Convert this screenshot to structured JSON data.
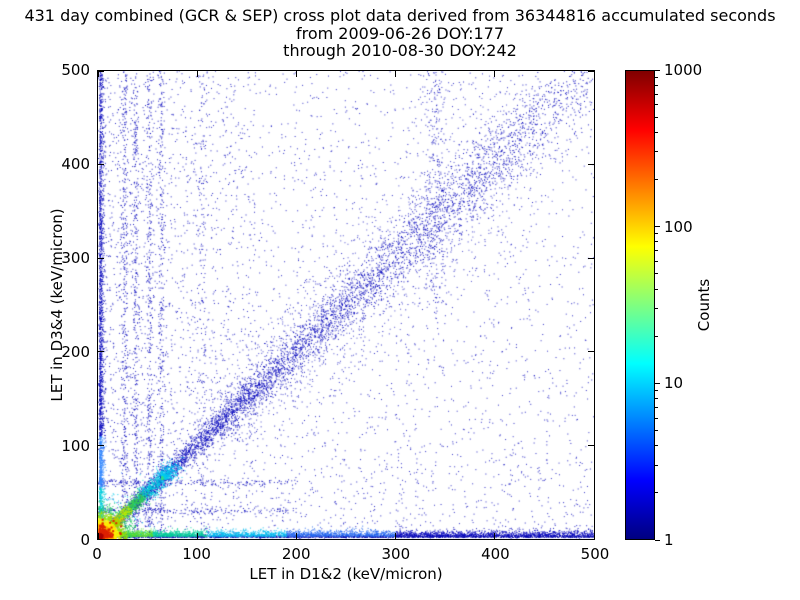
{
  "chart_data": {
    "type": "heatmap",
    "title": "431 day combined (GCR & SEP) cross plot data derived from 36344816 accumulated seconds",
    "subtitle_from": "from 2009-06-26 DOY:177",
    "subtitle_through": "through 2010-08-30 DOY:242",
    "xlabel": "LET in D1&2 (keV/micron)",
    "ylabel": "LET in D3&4 (keV/micron)",
    "xlim": [
      0,
      500
    ],
    "ylim": [
      0,
      500
    ],
    "xticks": [
      0,
      100,
      200,
      300,
      400,
      500
    ],
    "yticks": [
      0,
      100,
      200,
      300,
      400,
      500
    ],
    "grid": false,
    "point_color_low": "#0000bb",
    "colorbar": {
      "label": "Counts",
      "scale": "log",
      "ticks": [
        1,
        10,
        100,
        1000
      ],
      "tick_labels": [
        "1",
        "10",
        "100",
        "1000"
      ],
      "colormap": "jet",
      "gradient": [
        [
          0,
          "#000080"
        ],
        [
          0.125,
          "#0000ff"
        ],
        [
          0.375,
          "#00ffff"
        ],
        [
          0.625,
          "#ffff00"
        ],
        [
          0.875,
          "#ff0000"
        ],
        [
          1,
          "#800000"
        ]
      ]
    },
    "seed": 1337,
    "features": [
      {
        "id": "bg-sparse",
        "type": "uniform",
        "count": 2600,
        "x": [
          0,
          500
        ],
        "y": [
          0,
          500
        ],
        "xpow": 1.3,
        "ypow": 1.15,
        "color": "#0000bb",
        "size": 1,
        "alpha": 0.85
      },
      {
        "id": "bg-even",
        "type": "uniform",
        "count": 900,
        "x": [
          0,
          500
        ],
        "y": [
          0,
          500
        ],
        "xpow": 1.0,
        "ypow": 1.0,
        "color": "#0000bb",
        "size": 1,
        "alpha": 0.8
      },
      {
        "id": "upper-left-cloud",
        "type": "uniform",
        "count": 700,
        "x": [
          0,
          160
        ],
        "y": [
          80,
          500
        ],
        "xpow": 1.2,
        "ypow": 1.0,
        "color": "#0000bb",
        "size": 1,
        "alpha": 0.85
      },
      {
        "id": "diag-halo",
        "type": "diagonal",
        "count": 1600,
        "t": [
          120,
          430
        ],
        "tpow": 1.2,
        "sigma": [
          18,
          40
        ],
        "color": "#0000bb",
        "size": 1,
        "alpha": 0.7
      },
      {
        "id": "diag-band",
        "type": "diagonal",
        "count": 5200,
        "t": [
          10,
          500
        ],
        "tpow": 1.8,
        "sigma": [
          2.5,
          22
        ],
        "color": "#0000bb",
        "size": 1,
        "alpha": 0.9
      },
      {
        "id": "vstreak-1",
        "type": "vstreak",
        "x": 27,
        "sigma": 1.6,
        "count": 380,
        "y": [
          0,
          500
        ],
        "ypow": 1.25,
        "color": "#0000bb",
        "size": 1,
        "alpha": 0.9
      },
      {
        "id": "vstreak-2",
        "type": "vstreak",
        "x": 38,
        "sigma": 1.6,
        "count": 340,
        "y": [
          0,
          500
        ],
        "ypow": 1.25,
        "color": "#0000bb",
        "size": 1,
        "alpha": 0.9
      },
      {
        "id": "vstreak-3",
        "type": "vstreak",
        "x": 52,
        "sigma": 1.7,
        "count": 320,
        "y": [
          0,
          500
        ],
        "ypow": 1.2,
        "color": "#0000bb",
        "size": 1,
        "alpha": 0.9
      },
      {
        "id": "vstreak-4",
        "type": "vstreak",
        "x": 64,
        "sigma": 1.7,
        "count": 300,
        "y": [
          0,
          500
        ],
        "ypow": 1.2,
        "color": "#0000bb",
        "size": 1,
        "alpha": 0.9
      },
      {
        "id": "vstreak-5",
        "type": "vstreak",
        "x": 106,
        "sigma": 2.0,
        "count": 140,
        "y": [
          0,
          500
        ],
        "ypow": 1.1,
        "color": "#0000bb",
        "size": 1,
        "alpha": 0.85
      },
      {
        "id": "vsmear-340",
        "type": "vstreak",
        "x": 340,
        "sigma": 6.0,
        "count": 260,
        "y": [
          250,
          500
        ],
        "ypow": 1.0,
        "color": "#0000bb",
        "size": 1,
        "alpha": 0.8
      },
      {
        "id": "hstreak-1",
        "type": "hstreak",
        "y": 30,
        "sigma": 1.8,
        "count": 200,
        "x": [
          0,
          200
        ],
        "xpow": 1.4,
        "color": "#0000bb",
        "size": 1,
        "alpha": 0.9
      },
      {
        "id": "hstreak-2",
        "type": "hstreak",
        "y": 60,
        "sigma": 2.0,
        "count": 200,
        "x": [
          0,
          200
        ],
        "xpow": 1.4,
        "color": "#0000bb",
        "size": 1,
        "alpha": 0.9
      },
      {
        "id": "bottom-line",
        "type": "hband",
        "y0": 1.5,
        "sigma": 1.2,
        "count": 1600,
        "x": [
          0,
          500
        ],
        "xpow": 1.1,
        "size": 1,
        "alpha": 0.9,
        "segments": [
          {
            "upto": 500,
            "color": "#0000aa"
          }
        ]
      },
      {
        "id": "bottom-band",
        "type": "hband",
        "y0": 2.5,
        "sigma": 3.2,
        "count": 4200,
        "x": [
          0,
          500
        ],
        "xpow": 1.6,
        "size": 1,
        "alpha": 0.9,
        "segments": [
          {
            "upto": 55,
            "color": "#55dd33"
          },
          {
            "upto": 110,
            "color": "#00cc99"
          },
          {
            "upto": 190,
            "color": "#00bbee"
          },
          {
            "upto": 300,
            "color": "#2266ee"
          },
          {
            "upto": 500,
            "color": "#0000bb"
          }
        ]
      },
      {
        "id": "left-column",
        "type": "vband",
        "x0": 1.5,
        "sigma": 2.2,
        "count": 2300,
        "y": [
          0,
          500
        ],
        "ypow": 1.9,
        "size": 1,
        "alpha": 0.9,
        "segments": [
          {
            "upto": 55,
            "color": "#00ccdd"
          },
          {
            "upto": 110,
            "color": "#3388ff"
          },
          {
            "upto": 500,
            "color": "#0000bb"
          }
        ]
      },
      {
        "id": "diag-hot",
        "type": "diaghot",
        "t": [
          0,
          78
        ],
        "tpow": 1.9,
        "sigma0": 1.2,
        "sigmak": 0.05,
        "count": 2600,
        "size": 1,
        "alpha": 0.95,
        "segments": [
          {
            "upto": 14,
            "color": "#ff4400"
          },
          {
            "upto": 22,
            "color": "#ffaa00"
          },
          {
            "upto": 32,
            "color": "#bbee00"
          },
          {
            "upto": 46,
            "color": "#33cc55"
          },
          {
            "upto": 62,
            "color": "#00ccdd"
          },
          {
            "upto": 78,
            "color": "#00bbee"
          }
        ]
      },
      {
        "id": "diag-hot-blob",
        "type": "hotspot",
        "cx": 64,
        "cy": 64,
        "count": 260,
        "rscale": 4,
        "size": 1,
        "alpha": 0.95,
        "rings": [
          {
            "upto": 3,
            "color": "#33dd88"
          },
          {
            "upto": 9999,
            "color": "#00ccee"
          }
        ]
      },
      {
        "id": "origin-hotspot",
        "type": "hotspot",
        "cx": 0,
        "cy": 0,
        "count": 6500,
        "rscale": 9,
        "size": 1,
        "alpha": 0.95,
        "rings": [
          {
            "upto": 7,
            "color": "#e03000"
          },
          {
            "upto": 11,
            "color": "#ff6a00"
          },
          {
            "upto": 16,
            "color": "#ffb300"
          },
          {
            "upto": 22,
            "color": "#ffee00"
          },
          {
            "upto": 30,
            "color": "#99e000"
          },
          {
            "upto": 42,
            "color": "#22cc66"
          },
          {
            "upto": 58,
            "color": "#00c8e8"
          },
          {
            "upto": 78,
            "color": "#2277ff"
          },
          {
            "upto": 9999,
            "color": "#0000cc"
          }
        ]
      },
      {
        "id": "origin-core",
        "type": "hotspot",
        "cx": 2,
        "cy": 2,
        "count": 900,
        "rscale": 3,
        "size": 2,
        "alpha": 1,
        "rings": [
          {
            "upto": 4,
            "color": "#aa0000"
          },
          {
            "upto": 9999,
            "color": "#dd2200"
          }
        ]
      }
    ]
  }
}
